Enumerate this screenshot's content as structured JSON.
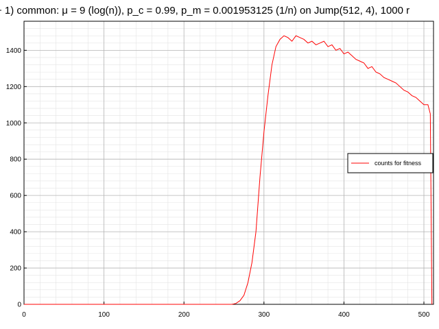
{
  "chart_data": {
    "type": "line",
    "title": "+ 1) common: μ = 9 (log(n)), p_c = 0.99, p_m = 0.001953125 (1/n) on Jump(512, 4), 1000 r",
    "xlabel": "",
    "ylabel": "",
    "xlim": [
      0,
      512
    ],
    "ylim": [
      0,
      1560
    ],
    "x_ticks": [
      "0",
      "100",
      "200",
      "300",
      "400",
      "500"
    ],
    "y_ticks": [
      "0",
      "200",
      "400",
      "600",
      "800",
      "1000",
      "1200",
      "1400"
    ],
    "grid": true,
    "legend_position": "right",
    "series": [
      {
        "name": "counts for fitness",
        "color": "#ff0000",
        "x": [
          0,
          100,
          200,
          260,
          265,
          270,
          275,
          280,
          285,
          290,
          295,
          300,
          305,
          310,
          315,
          320,
          325,
          330,
          335,
          340,
          345,
          350,
          355,
          360,
          365,
          370,
          375,
          380,
          385,
          390,
          395,
          400,
          405,
          410,
          415,
          420,
          425,
          430,
          435,
          440,
          445,
          450,
          455,
          460,
          465,
          470,
          475,
          480,
          485,
          490,
          495,
          500,
          505,
          508,
          510
        ],
        "y": [
          0,
          0,
          0,
          0,
          5,
          20,
          50,
          120,
          230,
          400,
          700,
          950,
          1150,
          1320,
          1420,
          1460,
          1480,
          1470,
          1450,
          1480,
          1470,
          1460,
          1440,
          1450,
          1430,
          1440,
          1450,
          1420,
          1430,
          1400,
          1410,
          1380,
          1390,
          1370,
          1350,
          1340,
          1330,
          1300,
          1310,
          1280,
          1270,
          1250,
          1240,
          1230,
          1220,
          1200,
          1180,
          1170,
          1150,
          1140,
          1120,
          1100,
          1100,
          1050,
          0
        ]
      }
    ]
  }
}
